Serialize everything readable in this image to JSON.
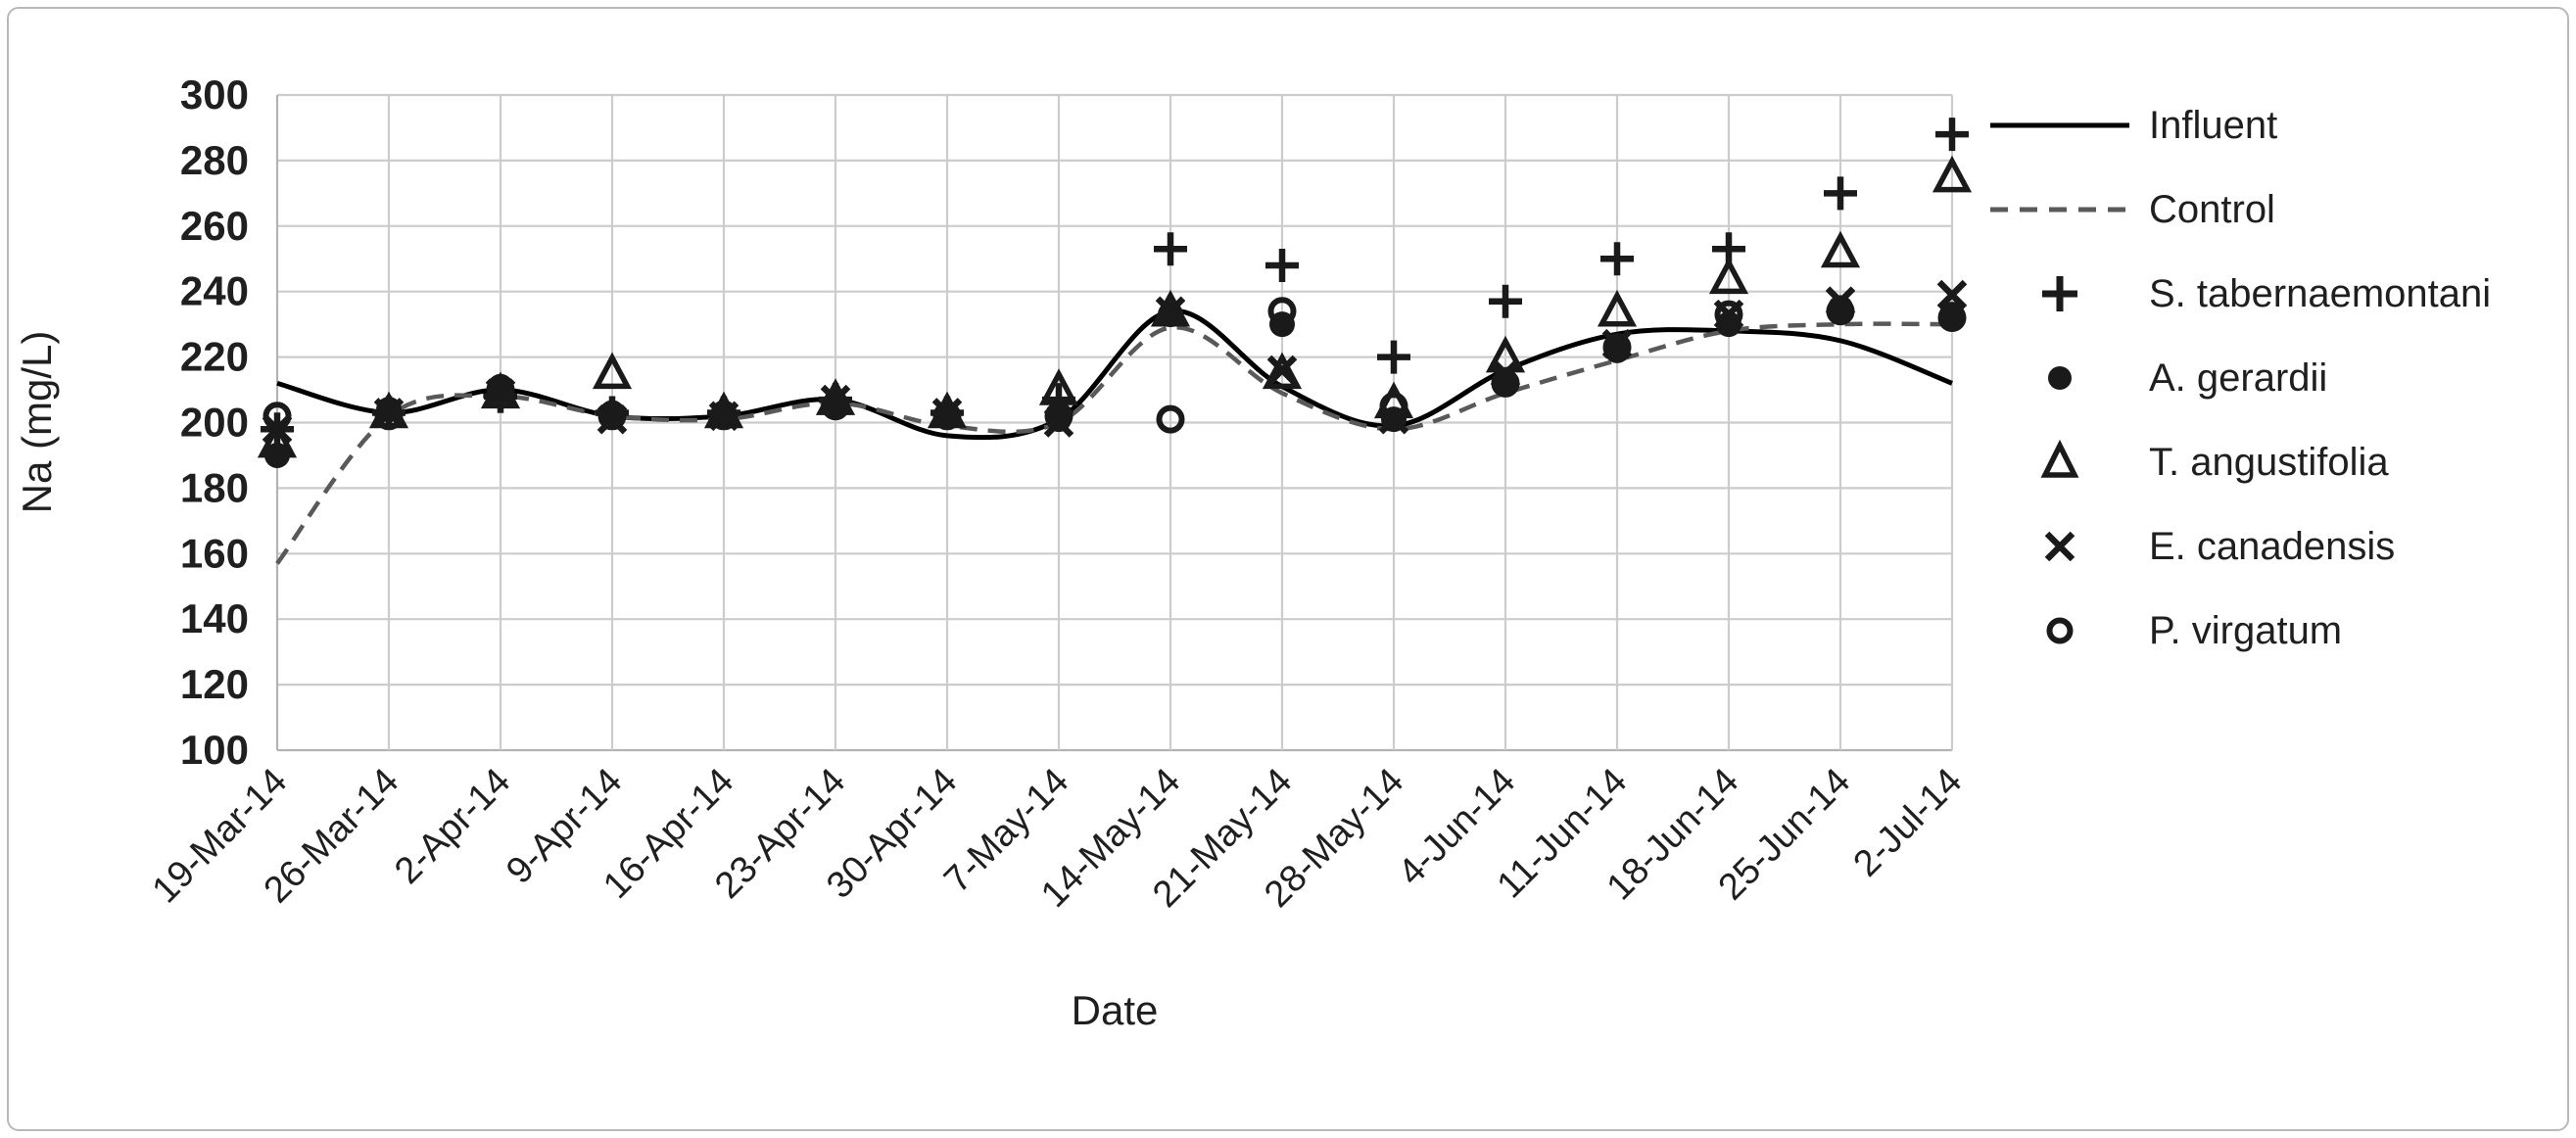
{
  "figure": {
    "ylabel": "Na (mg/L)",
    "xlabel": "Date"
  },
  "chart_data": {
    "type": "line+scatter",
    "title": "",
    "xlabel": "Date",
    "ylabel": "Na (mg/L)",
    "ylim": [
      100,
      300
    ],
    "y_axis": {
      "min": 100,
      "max": 300,
      "step": 20
    },
    "grid": true,
    "legend_position": "right",
    "categories": [
      "19-Mar-14",
      "26-Mar-14",
      "2-Apr-14",
      "9-Apr-14",
      "16-Apr-14",
      "23-Apr-14",
      "30-Apr-14",
      "7-May-14",
      "14-May-14",
      "21-May-14",
      "28-May-14",
      "4-Jun-14",
      "11-Jun-14",
      "18-Jun-14",
      "25-Jun-14",
      "2-Jul-14"
    ],
    "line_series": [
      {
        "name": "Influent",
        "style": "solid",
        "color": "#000000",
        "values": [
          212,
          203,
          210,
          202,
          202,
          207,
          196,
          201,
          234,
          211,
          199,
          216,
          227,
          228,
          225,
          212
        ]
      },
      {
        "name": "Control",
        "style": "dashed",
        "color": "#595959",
        "values": [
          157,
          202,
          208,
          202,
          201,
          206,
          199,
          200,
          229,
          209,
          198,
          209,
          219,
          228,
          230,
          230
        ]
      }
    ],
    "scatter_series": [
      {
        "name": "S. tabernaemontani",
        "marker": "plus",
        "values": [
          198,
          203,
          208,
          203,
          203,
          207,
          203,
          207,
          253,
          248,
          220,
          237,
          250,
          253,
          270,
          288
        ]
      },
      {
        "name": "A. gerardii",
        "marker": "circle-filled",
        "values": [
          190,
          204,
          211,
          203,
          203,
          206,
          202,
          201,
          233,
          230,
          201,
          212,
          222,
          230,
          235,
          233
        ]
      },
      {
        "name": "T. angustifolia",
        "marker": "triangle-open",
        "values": [
          194,
          203,
          209,
          215,
          203,
          207,
          203,
          210,
          234,
          215,
          206,
          220,
          234,
          244,
          252,
          275
        ]
      },
      {
        "name": "E. canadensis",
        "marker": "x",
        "values": [
          198,
          203,
          209,
          201,
          202,
          207,
          203,
          200,
          234,
          216,
          201,
          215,
          224,
          233,
          237,
          239
        ]
      },
      {
        "name": "P. virgatum",
        "marker": "circle-open",
        "values": [
          202,
          202,
          210,
          202,
          202,
          205,
          202,
          202,
          201,
          234,
          205,
          212,
          223,
          233,
          234,
          232
        ]
      }
    ],
    "colors": {
      "marker": "#1a1a1a",
      "grid": "#cccccc",
      "axis": "#b3b3b3",
      "text": "#1f1f1f"
    }
  }
}
